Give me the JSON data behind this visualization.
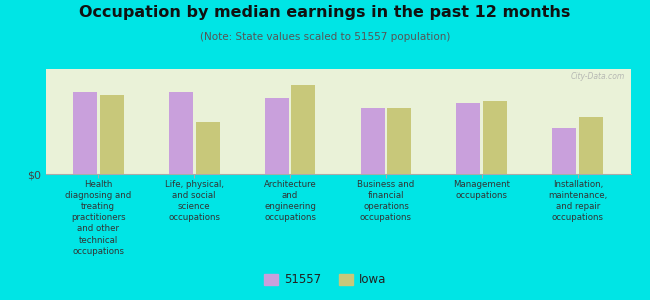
{
  "title": "Occupation by median earnings in the past 12 months",
  "subtitle": "(Note: State values scaled to 51557 population)",
  "background_outer": "#00e5e5",
  "background_plot": "#eaf2d8",
  "bar_color_51557": "#c9a0dc",
  "bar_color_iowa": "#c8c87a",
  "ylabel": "$0",
  "categories": [
    "Health\ndiagnosing and\ntreating\npractitioners\nand other\ntechnical\noccupations",
    "Life, physical,\nand social\nscience\noccupations",
    "Architecture\nand\nengineering\noccupations",
    "Business and\nfinancial\noperations\noccupations",
    "Management\noccupations",
    "Installation,\nmaintenance,\nand repair\noccupations"
  ],
  "values_51557": [
    0.78,
    0.78,
    0.72,
    0.63,
    0.68,
    0.44
  ],
  "values_iowa": [
    0.75,
    0.5,
    0.85,
    0.63,
    0.7,
    0.54
  ],
  "legend_labels": [
    "51557",
    "Iowa"
  ],
  "watermark": "City-Data.com"
}
